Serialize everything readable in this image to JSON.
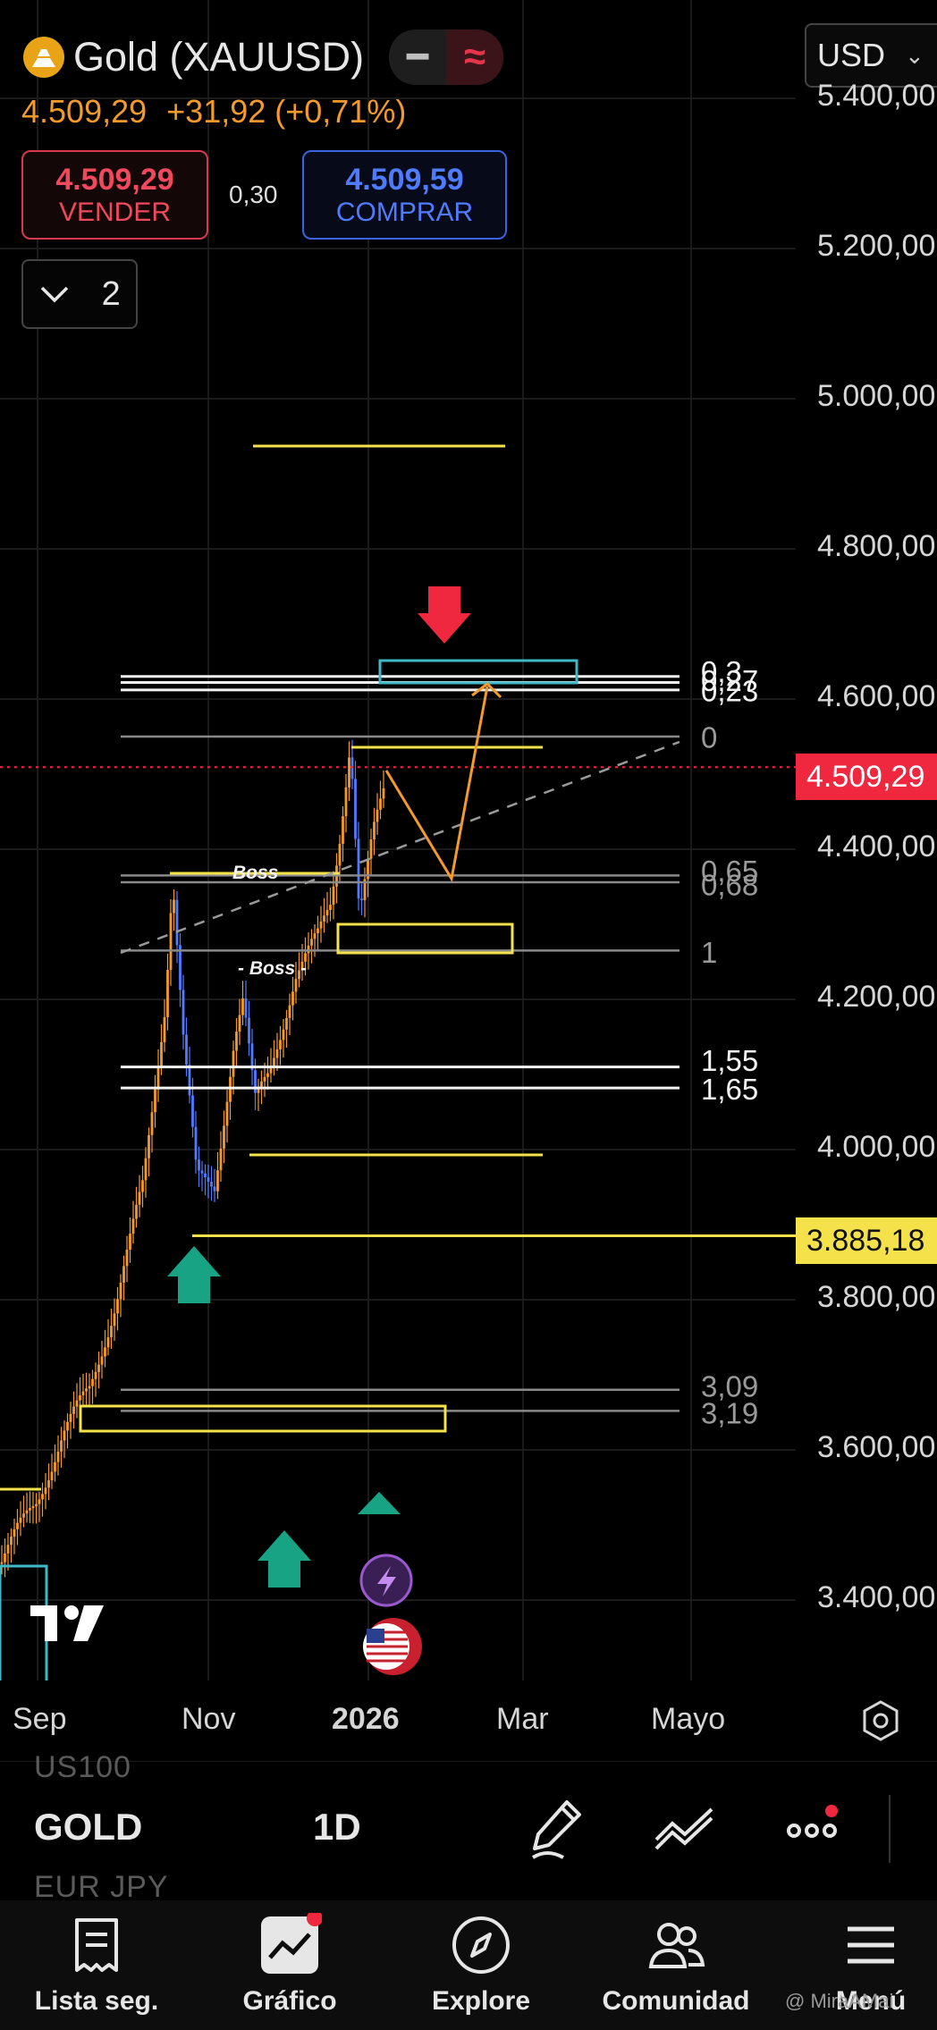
{
  "header": {
    "symbol_title": "Gold (XAUUSD)",
    "last_price": "4.509,29",
    "change": "+31,92 (+0,71%)",
    "currency": "USD",
    "indicator_count": "2",
    "sell": {
      "price": "4.509,29",
      "label": "VENDER",
      "color": "#f0485c"
    },
    "buy": {
      "price": "4.509,59",
      "label": "COMPRAR",
      "color": "#4f7bff"
    },
    "spread": "0,30"
  },
  "price_axis": {
    "labels": [
      "5.400,00",
      "5.200,00",
      "5.000,00",
      "4.800,00",
      "4.600,00",
      "4.400,00",
      "4.200,00",
      "4.000,00",
      "3.800,00",
      "3.600,00",
      "3.400,00"
    ],
    "current_price_tag": "4.509,29",
    "support_tag": "3.885,18"
  },
  "time_axis": {
    "labels": [
      "Sep",
      "Nov",
      "2026",
      "Mar",
      "Mayo"
    ]
  },
  "annotations": {
    "boss_1": "Boss",
    "boss_2": "- Boss -",
    "fib_levels": [
      "0,3",
      "0,27",
      "0,23",
      "0",
      "0,65",
      "0,68",
      "1",
      "1,55",
      "1,65",
      "3,09",
      "3,19"
    ]
  },
  "chart_data": {
    "type": "candlestick",
    "symbol": "GOLD",
    "timeframe": "1D",
    "x_labels": [
      "Sep",
      "Nov",
      "2026",
      "Mar",
      "Mayo"
    ],
    "ylim": [
      3300,
      5450
    ],
    "y_ticks": [
      5400,
      5200,
      5000,
      4800,
      4600,
      4400,
      4200,
      4000,
      3800,
      3600,
      3400
    ],
    "last_price": 4509.29,
    "horizontal_levels": [
      {
        "label": "0,3",
        "value": 4630
      },
      {
        "label": "0,27",
        "value": 4622
      },
      {
        "label": "0,23",
        "value": 4612
      },
      {
        "label": "0",
        "value": 4550
      },
      {
        "label": "0,65",
        "value": 4365
      },
      {
        "label": "0,68",
        "value": 4356
      },
      {
        "label": "1",
        "value": 4265
      },
      {
        "label": "1,55",
        "value": 4110
      },
      {
        "label": "1,65",
        "value": 4082
      },
      {
        "label": "3,09",
        "value": 3680
      },
      {
        "label": "3,19",
        "value": 3652
      },
      {
        "label": "3.885,18",
        "value": 3885.18
      }
    ],
    "colors": {
      "up": "#f39a2b",
      "down": "#4f7bff",
      "zone": "#f5e24a",
      "target": "#3fb8c8"
    }
  },
  "toolbar": {
    "symbol": "GOLD",
    "timeframe": "1D",
    "ghost_above": "US100",
    "ghost_below": "EUR JPY"
  },
  "nav": [
    {
      "label": "Lista seg.",
      "icon": "watchlist-icon"
    },
    {
      "label": "Gráfico",
      "icon": "chart-icon"
    },
    {
      "label": "Explore",
      "icon": "compass-icon"
    },
    {
      "label": "Comunidad",
      "icon": "community-icon"
    },
    {
      "label": "Menú",
      "icon": "menu-icon"
    }
  ],
  "watermark": "@ MiraAMai"
}
